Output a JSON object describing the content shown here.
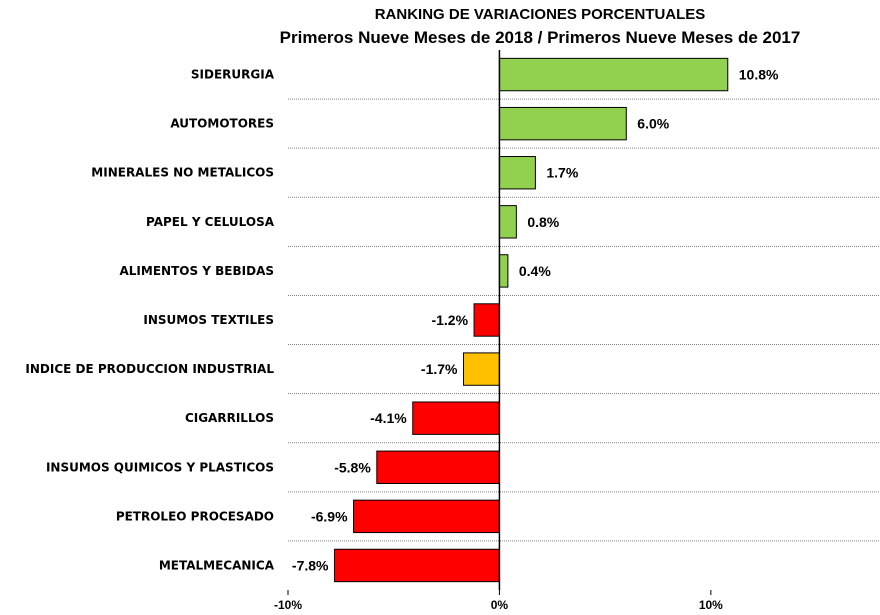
{
  "chart_data": {
    "type": "bar",
    "orientation": "horizontal",
    "title": "RANKING DE VARIACIONES PORCENTUALES",
    "subtitle": "Primeros Nueve Meses de 2018 / Primeros Nueve Meses de 2017",
    "categories": [
      "SIDERURGIA",
      "AUTOMOTORES",
      "MINERALES NO METALICOS",
      "PAPEL Y CELULOSA",
      "ALIMENTOS Y BEBIDAS",
      "INSUMOS TEXTILES",
      "INDICE DE PRODUCCION INDUSTRIAL",
      "CIGARRILLOS",
      "INSUMOS QUIMICOS Y PLASTICOS",
      "PETROLEO PROCESADO",
      "METALMECANICA"
    ],
    "values": [
      10.8,
      6.0,
      1.7,
      0.8,
      0.4,
      -1.2,
      -1.7,
      -4.1,
      -5.8,
      -6.9,
      -7.8
    ],
    "value_labels": [
      "10.8%",
      "6.0%",
      "1.7%",
      "0.8%",
      "0.4%",
      "-1.2%",
      "-1.7%",
      "-4.1%",
      "-5.8%",
      "-6.9%",
      "-7.8%"
    ],
    "xlim": [
      -10,
      18
    ],
    "xticks": [
      -10,
      0,
      10
    ],
    "xtick_labels": [
      "-10%",
      "0%",
      "10%"
    ],
    "colors": {
      "positive": "#92D050",
      "negative": "#FF0000",
      "index": "#FFC000",
      "gridline": "#808080"
    },
    "highlight_category": "INDICE DE PRODUCCION INDUSTRIAL",
    "grid": true,
    "legend": false
  }
}
